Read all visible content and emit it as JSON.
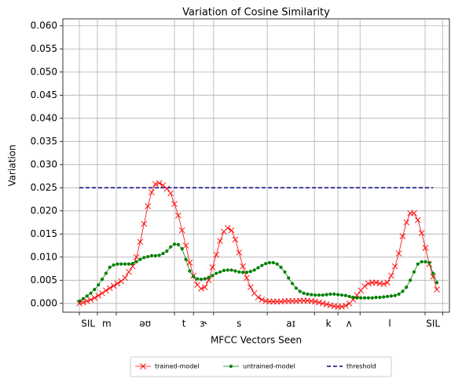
{
  "chart_data": {
    "type": "line",
    "title": "Variation of Cosine Similarity",
    "x_label": "MFCC Vectors Seen",
    "y_label": "Variation",
    "grid": true,
    "legend": "lower center",
    "x": [
      0,
      1,
      2,
      3,
      4,
      5,
      6,
      7,
      8,
      9,
      10,
      11,
      12,
      13,
      14,
      15,
      16,
      17,
      18,
      19,
      20,
      21,
      22,
      23,
      24,
      25,
      26,
      27,
      28,
      29,
      30,
      31,
      32,
      33,
      34,
      35,
      36,
      37,
      38,
      39,
      40,
      41,
      42,
      43,
      44,
      45,
      46,
      47,
      48,
      49,
      50,
      51,
      52,
      53,
      54,
      55,
      56,
      57,
      58,
      59,
      60,
      61,
      62,
      63,
      64,
      65,
      66,
      67,
      68,
      69,
      70,
      71,
      72,
      73,
      74,
      75,
      76,
      77,
      78,
      79,
      80,
      81,
      82,
      83,
      84,
      85,
      86,
      87,
      88,
      89,
      90,
      91,
      92,
      93,
      94
    ],
    "xlim": [
      -4.34,
      97.3
    ],
    "x_boundaries": [
      0,
      4.75,
      9.7,
      25,
      30,
      35.3,
      49.4,
      61.8,
      68,
      73.8,
      90.9,
      95.5
    ],
    "xticks": [
      {
        "value": 2.3,
        "label": "SIL"
      },
      {
        "value": 7.2,
        "label": "m"
      },
      {
        "value": 17.3,
        "label": "əʊ"
      },
      {
        "value": 27.5,
        "label": "t"
      },
      {
        "value": 32.6,
        "label": "ɝ"
      },
      {
        "value": 42,
        "label": "s"
      },
      {
        "value": 55.6,
        "label": "aɪ"
      },
      {
        "value": 65.5,
        "label": "k"
      },
      {
        "value": 70.9,
        "label": "ʌ"
      },
      {
        "value": 81.6,
        "label": "l"
      },
      {
        "value": 93,
        "label": "SIL"
      }
    ],
    "ylim": [
      -0.0019,
      0.0615
    ],
    "yticks": [
      {
        "value": 0,
        "label": "0.000"
      },
      {
        "value": 0.005,
        "label": "0.005"
      },
      {
        "value": 0.01,
        "label": "0.010"
      },
      {
        "value": 0.015,
        "label": "0.015"
      },
      {
        "value": 0.02,
        "label": "0.020"
      },
      {
        "value": 0.025,
        "label": "0.025"
      },
      {
        "value": 0.03,
        "label": "0.030"
      },
      {
        "value": 0.035,
        "label": "0.035"
      },
      {
        "value": 0.04,
        "label": "0.040"
      },
      {
        "value": 0.045,
        "label": "0.045"
      },
      {
        "value": 0.05,
        "label": "0.050"
      },
      {
        "value": 0.055,
        "label": "0.055"
      },
      {
        "value": 0.06,
        "label": "0.060"
      }
    ],
    "series": [
      {
        "name": "trained-model",
        "color": "#ff0000",
        "marker": "x",
        "values": [
          0.0,
          0.0002,
          0.0005,
          0.0008,
          0.0012,
          0.0017,
          0.0022,
          0.0028,
          0.0033,
          0.0038,
          0.0043,
          0.0048,
          0.0055,
          0.0068,
          0.008,
          0.01,
          0.0133,
          0.0172,
          0.021,
          0.024,
          0.0258,
          0.026,
          0.0255,
          0.0248,
          0.0238,
          0.0215,
          0.019,
          0.0158,
          0.0125,
          0.0088,
          0.006,
          0.004,
          0.0032,
          0.0035,
          0.005,
          0.0078,
          0.0105,
          0.0135,
          0.0155,
          0.0163,
          0.0158,
          0.0138,
          0.011,
          0.008,
          0.0055,
          0.0035,
          0.0022,
          0.0013,
          0.0008,
          0.0005,
          0.0004,
          0.0004,
          0.0004,
          0.0004,
          0.0005,
          0.0005,
          0.0005,
          0.0005,
          0.0006,
          0.0006,
          0.0006,
          0.0005,
          0.0004,
          0.0002,
          0.0,
          -0.0002,
          -0.0004,
          -0.0006,
          -0.0007,
          -0.0007,
          -0.0005,
          0.0,
          0.0008,
          0.0018,
          0.0028,
          0.0037,
          0.0043,
          0.0045,
          0.0045,
          0.0043,
          0.0042,
          0.0045,
          0.006,
          0.008,
          0.0108,
          0.0145,
          0.0175,
          0.0195,
          0.0195,
          0.018,
          0.0152,
          0.012,
          0.0085,
          0.0058,
          0.003
        ]
      },
      {
        "name": "untrained-model",
        "color": "#008000",
        "marker": "dot",
        "values": [
          0.0005,
          0.001,
          0.0016,
          0.0022,
          0.003,
          0.004,
          0.0052,
          0.0065,
          0.0078,
          0.0083,
          0.0085,
          0.0085,
          0.0085,
          0.0085,
          0.0086,
          0.009,
          0.0095,
          0.0099,
          0.0101,
          0.0103,
          0.0103,
          0.0104,
          0.0108,
          0.0113,
          0.0122,
          0.0128,
          0.0127,
          0.0118,
          0.0095,
          0.007,
          0.0058,
          0.0053,
          0.0052,
          0.0053,
          0.0056,
          0.006,
          0.0065,
          0.0068,
          0.0071,
          0.0072,
          0.0072,
          0.007,
          0.0068,
          0.0067,
          0.0067,
          0.0069,
          0.0072,
          0.0077,
          0.0082,
          0.0086,
          0.0088,
          0.0088,
          0.0085,
          0.0078,
          0.0068,
          0.0055,
          0.0043,
          0.0033,
          0.0026,
          0.0022,
          0.002,
          0.0019,
          0.0018,
          0.0018,
          0.0018,
          0.0019,
          0.002,
          0.002,
          0.0019,
          0.0018,
          0.0017,
          0.0015,
          0.0013,
          0.0012,
          0.0012,
          0.0012,
          0.0012,
          0.0012,
          0.0013,
          0.0013,
          0.0014,
          0.0015,
          0.0016,
          0.0017,
          0.002,
          0.0026,
          0.0035,
          0.005,
          0.0068,
          0.0085,
          0.009,
          0.009,
          0.0088,
          0.0065,
          0.0045
        ]
      },
      {
        "name": "threshold",
        "color": "#00008b",
        "marker": "dash",
        "x": [
          0,
          93
        ],
        "values": [
          0.025,
          0.025
        ]
      }
    ]
  }
}
